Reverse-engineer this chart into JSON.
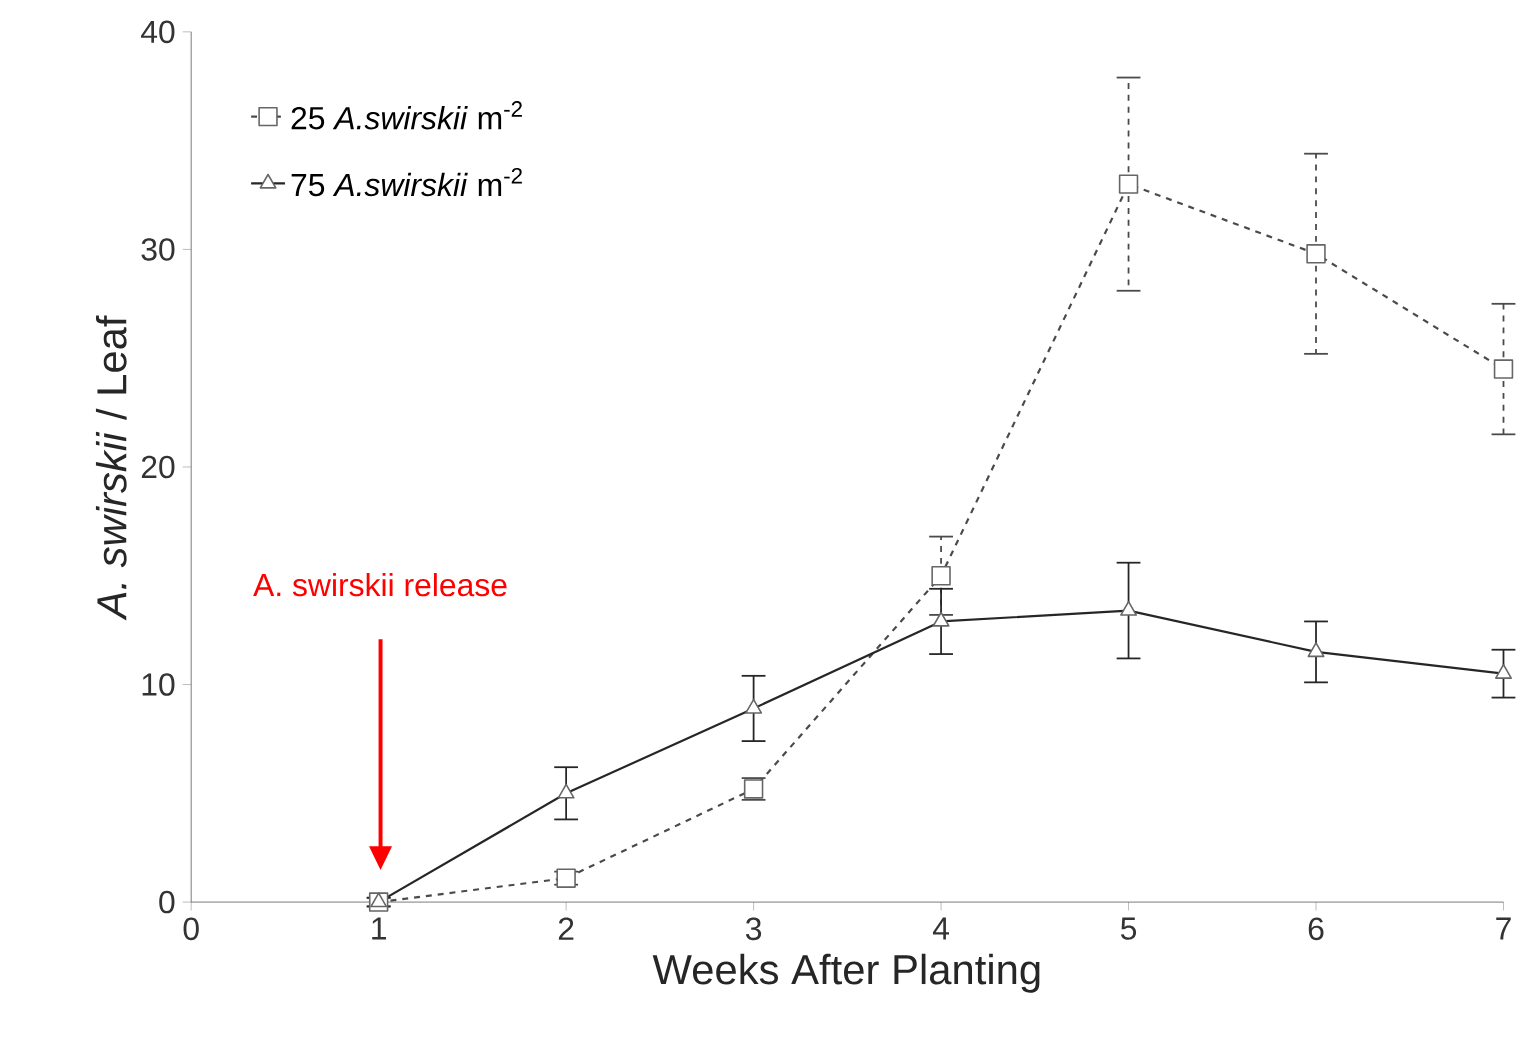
{
  "chart_data": {
    "type": "line",
    "xlabel": "Weeks After Planting",
    "ylabel": "*A. swirskii* / Leaf",
    "xlim": [
      0,
      7
    ],
    "xticks": [
      0,
      1,
      2,
      3,
      4,
      5,
      6,
      7
    ],
    "ylim": [
      0,
      40
    ],
    "yticks": [
      0,
      10,
      20,
      30,
      40
    ],
    "grid": false,
    "legend": "top left",
    "annotations": [
      "A. swirskii release"
    ],
    "series": [
      {
        "name": "25 *A.swirskii* m$^{-2}$",
        "color": "#4a4a4a",
        "marker": "square",
        "line_style": "dashed",
        "x": [
          1,
          2,
          3,
          4,
          5,
          6,
          7
        ],
        "values": [
          0,
          1.1,
          5.2,
          15.0,
          33.0,
          29.8,
          24.5
        ],
        "errors": [
          0.2,
          0.3,
          0.5,
          1.8,
          4.9,
          4.6,
          3.0
        ]
      },
      {
        "name": "75 *A.swirskii* m$^{-2}$",
        "color": "#262626",
        "marker": "triangle",
        "line_style": "solid",
        "x": [
          1,
          2,
          3,
          4,
          5,
          6,
          7
        ],
        "values": [
          0,
          5.0,
          8.9,
          12.9,
          13.4,
          11.5,
          10.5
        ],
        "errors": [
          0.2,
          1.2,
          1.5,
          1.5,
          2.2,
          1.4,
          1.1
        ]
      }
    ]
  }
}
